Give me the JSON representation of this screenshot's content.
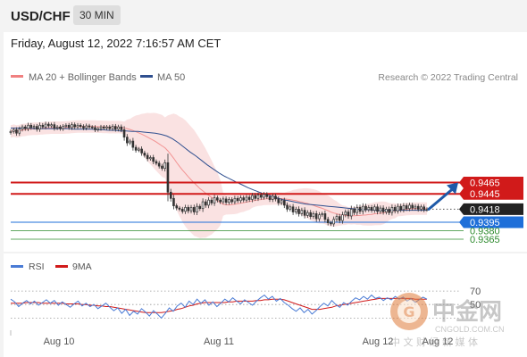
{
  "header": {
    "symbol": "USD/CHF",
    "timeframe": "30 MIN"
  },
  "datetime": "Friday, August 12, 2022 7:16:57 AM CET",
  "colors": {
    "price_up": "#3a3a3a",
    "price_down": "#3a3a3a",
    "ma20_bollinger": "#f08080",
    "ma50": "#2f4f8f",
    "resistance": "#d11a1a",
    "pivot": "#222222",
    "support_major": "#1e6fd9",
    "support_minor": "#2e8b2e",
    "rsi": "#4a7bd5",
    "rsi_ma": "#d11a1a"
  },
  "watermark": {
    "text_cn": "中金网",
    "domain": "CNGOLD.COM.CN",
    "sub_cn": "中 文 财 经 新 媒 体"
  },
  "chart_data": [
    {
      "type": "candlestick",
      "title": "USD/CHF",
      "timeframe": "30 MIN",
      "legend": [
        {
          "name": "MA 20 + Bollinger Bands",
          "color": "#f08080"
        },
        {
          "name": "MA 50",
          "color": "#2f4f8f"
        }
      ],
      "legend_placement": "top-left",
      "source_note": "Research © 2022 Trading Central",
      "x_ticks": [
        "Aug 10",
        "Aug 11",
        "Aug 12",
        "Aug 12"
      ],
      "ylim": [
        0.9343,
        0.9598
      ],
      "close": [
        0.9555,
        0.9558,
        0.9552,
        0.9559,
        0.9563,
        0.956,
        0.9566,
        0.9562,
        0.9564,
        0.9559,
        0.9566,
        0.9563,
        0.9568,
        0.9565,
        0.9567,
        0.9561,
        0.9563,
        0.956,
        0.9564,
        0.9566,
        0.9562,
        0.9567,
        0.9563,
        0.9566,
        0.9564,
        0.9561,
        0.9565,
        0.9563,
        0.9562,
        0.9558,
        0.956,
        0.9563,
        0.9561,
        0.9563,
        0.956,
        0.9564,
        0.9559,
        0.9563,
        0.9558,
        0.9545,
        0.9535,
        0.9538,
        0.9527,
        0.9522,
        0.9524,
        0.9517,
        0.9513,
        0.9507,
        0.9509,
        0.9502,
        0.9499,
        0.9494,
        0.949,
        0.95,
        0.9448,
        0.9437,
        0.9424,
        0.942,
        0.9418,
        0.9414,
        0.9421,
        0.9415,
        0.9421,
        0.9413,
        0.9423,
        0.9419,
        0.9431,
        0.9425,
        0.9434,
        0.9429,
        0.9438,
        0.9434,
        0.9431,
        0.9436,
        0.943,
        0.9435,
        0.9431,
        0.9437,
        0.9433,
        0.9438,
        0.9434,
        0.9439,
        0.9435,
        0.9442,
        0.9437,
        0.9443,
        0.9439,
        0.9444,
        0.944,
        0.9435,
        0.9441,
        0.9436,
        0.9429,
        0.9433,
        0.9425,
        0.9418,
        0.9422,
        0.9413,
        0.9418,
        0.941,
        0.9416,
        0.9407,
        0.9412,
        0.9405,
        0.941,
        0.9401,
        0.9408,
        0.941,
        0.94,
        0.9394,
        0.9392,
        0.94,
        0.9405,
        0.9398,
        0.9408,
        0.9413,
        0.9406,
        0.9418,
        0.9412,
        0.9421,
        0.9414,
        0.9423,
        0.9417,
        0.9421,
        0.9416,
        0.9422,
        0.9414,
        0.942,
        0.9413,
        0.9418,
        0.9412,
        0.9421,
        0.9415,
        0.9423,
        0.9417,
        0.9424,
        0.9419,
        0.9425,
        0.942,
        0.9423,
        0.9418,
        0.9422,
        0.9417,
        0.9418
      ],
      "ma50": [
        0.9561,
        0.9561,
        0.9561,
        0.9561,
        0.956,
        0.956,
        0.956,
        0.956,
        0.956,
        0.956,
        0.956,
        0.9559,
        0.9559,
        0.9559,
        0.9559,
        0.9558,
        0.9558,
        0.9557,
        0.9557,
        0.9556,
        0.9556,
        0.9555,
        0.9555,
        0.9554,
        0.9553,
        0.9552,
        0.955,
        0.9547,
        0.9542,
        0.9535,
        0.9527,
        0.9519,
        0.9512,
        0.9504,
        0.9496,
        0.9489,
        0.9482,
        0.9476,
        0.9471,
        0.9466,
        0.9461,
        0.9456,
        0.9452,
        0.9448,
        0.9444,
        0.9441,
        0.9438,
        0.9435,
        0.9433,
        0.9431,
        0.9429,
        0.9427,
        0.9426,
        0.9425,
        0.9424,
        0.9423,
        0.9422,
        0.9421,
        0.942,
        0.9419,
        0.9418,
        0.9417,
        0.9417,
        0.9416,
        0.9416,
        0.9416,
        0.9416,
        0.9416,
        0.9416,
        0.9416,
        0.9416,
        0.9416,
        0.9416
      ],
      "levels": [
        {
          "label": "0.9465",
          "value": 0.9465,
          "kind": "resistance"
        },
        {
          "label": "0.9445",
          "value": 0.9445,
          "kind": "resistance"
        },
        {
          "label": "0.9418",
          "value": 0.9418,
          "kind": "pivot"
        },
        {
          "label": "0.9395",
          "value": 0.9395,
          "kind": "support"
        },
        {
          "label": "0.9380",
          "value": 0.938,
          "kind": "support-minor"
        },
        {
          "label": "0.9365",
          "value": 0.9365,
          "kind": "support-minor"
        }
      ],
      "forecast_arrow": {
        "from": 0.9418,
        "to": 0.9465,
        "direction": "up"
      },
      "grid": false
    },
    {
      "type": "line",
      "title": "",
      "legend": [
        {
          "name": "RSI",
          "color": "#4a7bd5"
        },
        {
          "name": "9MA",
          "color": "#d11a1a"
        }
      ],
      "legend_placement": "top-left",
      "ylim": [
        20,
        78
      ],
      "reference_lines": [
        70,
        50,
        30
      ],
      "y_ticks": [
        "70",
        "50"
      ],
      "rsi": [
        58,
        54,
        47,
        52,
        56,
        51,
        55,
        49,
        53,
        57,
        52,
        56,
        49,
        54,
        50,
        46,
        51,
        55,
        48,
        52,
        47,
        50,
        44,
        48,
        52,
        46,
        41,
        45,
        37,
        43,
        34,
        40,
        36,
        44,
        39,
        33,
        41,
        36,
        30,
        37,
        45,
        40,
        48,
        52,
        46,
        55,
        50,
        58,
        52,
        57,
        49,
        54,
        47,
        52,
        58,
        54,
        60,
        55,
        51,
        57,
        53,
        49,
        55,
        60,
        64,
        58,
        62,
        55,
        59,
        53,
        49,
        44,
        40,
        45,
        38,
        43,
        36,
        41,
        47,
        52,
        48,
        56,
        50,
        46,
        53,
        49,
        55,
        60,
        57,
        62,
        58,
        64,
        59,
        61,
        56,
        60,
        57,
        62,
        58,
        61,
        55,
        59,
        53,
        57,
        61,
        58
      ],
      "ma9": [
        52,
        52,
        52,
        52,
        53,
        53,
        53,
        53,
        52,
        52,
        52,
        52,
        52,
        52,
        51,
        51,
        51,
        51,
        50,
        50,
        49,
        49,
        48,
        48,
        47,
        47,
        46,
        45,
        44,
        43,
        42,
        41,
        40,
        39,
        38,
        38,
        38,
        38,
        38,
        39,
        40,
        41,
        43,
        44,
        46,
        48,
        49,
        51,
        52,
        53,
        53,
        53,
        53,
        53,
        53,
        54,
        54,
        55,
        55,
        55,
        55,
        55,
        56,
        56,
        57,
        57,
        58,
        58,
        58,
        57,
        55,
        53,
        51,
        49,
        47,
        45,
        43,
        43,
        43,
        44,
        45,
        46,
        48,
        49,
        50,
        51,
        52,
        53,
        54,
        55,
        56,
        57,
        58,
        59,
        59,
        59,
        59,
        59,
        59,
        59,
        59,
        59,
        58,
        58,
        58,
        58
      ]
    }
  ]
}
